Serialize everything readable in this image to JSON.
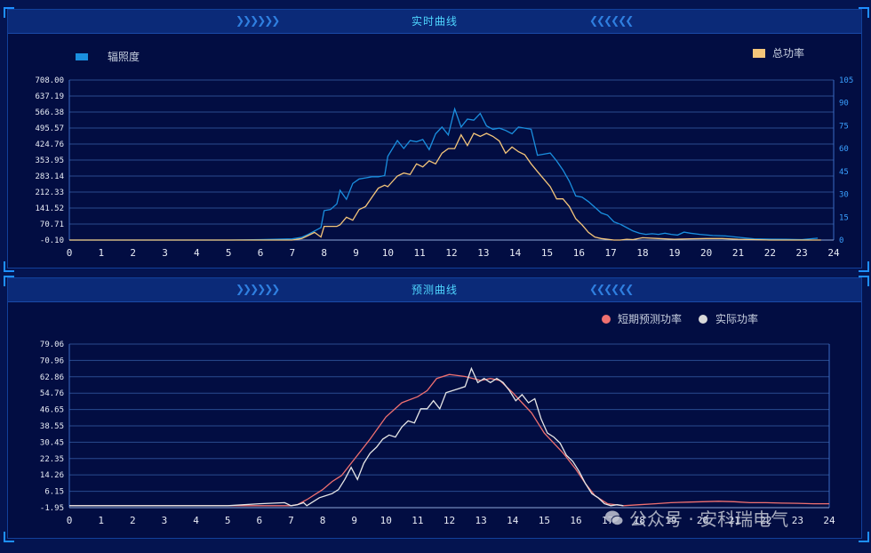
{
  "top_panel": {
    "title": "实时曲线"
  },
  "bottom_panel": {
    "title": "预测曲线"
  },
  "watermark": {
    "text": "公众号 · 安科瑞电气"
  },
  "colors": {
    "background": "#020d42",
    "title_bar": "#0b2a78",
    "title_text": "#4fd6ff",
    "irradiance": "#1a8fdf",
    "total_power": "#f5c67a",
    "forecast": "#f07070",
    "actual": "#e6e6e6"
  },
  "chart_data": [
    {
      "type": "line",
      "title": "实时曲线",
      "legend_position": "top",
      "x_ticks": [
        0,
        1,
        2,
        3,
        4,
        5,
        6,
        7,
        8,
        9,
        10,
        11,
        12,
        13,
        14,
        15,
        16,
        17,
        18,
        19,
        20,
        21,
        22,
        23,
        24
      ],
      "xlim": [
        0,
        24
      ],
      "y_left_ticks": [
        "-0.10",
        "70.71",
        "141.52",
        "212.33",
        "283.14",
        "353.95",
        "424.76",
        "495.57",
        "566.38",
        "637.19",
        "708.00"
      ],
      "y_left_lim": [
        -0.1,
        708.0
      ],
      "y_right_ticks": [
        "0",
        "15",
        "30",
        "45",
        "60",
        "75",
        "90",
        "105"
      ],
      "y_right_lim": [
        0,
        105
      ],
      "grid": true,
      "series": [
        {
          "name": "辐照度",
          "axis": "left",
          "x": [
            0,
            1,
            2,
            3,
            4,
            5,
            6,
            7,
            7.3,
            7.5,
            7.7,
            7.9,
            8.0,
            8.2,
            8.4,
            8.5,
            8.7,
            8.9,
            9.1,
            9.3,
            9.5,
            9.7,
            9.9,
            10.0,
            10.3,
            10.5,
            10.7,
            10.9,
            11.1,
            11.3,
            11.5,
            11.7,
            11.9,
            12.1,
            12.3,
            12.5,
            12.7,
            12.9,
            13.1,
            13.3,
            13.5,
            13.7,
            13.9,
            14.1,
            14.3,
            14.5,
            14.7,
            14.9,
            15.1,
            15.3,
            15.5,
            15.7,
            15.9,
            16.1,
            16.3,
            16.5,
            16.7,
            16.9,
            17.1,
            17.3,
            17.5,
            17.7,
            17.9,
            18.1,
            18.3,
            18.5,
            18.7,
            18.9,
            19.1,
            19.3,
            19.5,
            19.8,
            20.2,
            20.6,
            21.0,
            21.5,
            22.0,
            22.5,
            23.0,
            23.5
          ],
          "values": [
            0,
            0,
            0,
            0,
            0,
            0,
            2,
            5,
            12,
            25,
            40,
            55,
            130,
            135,
            160,
            220,
            180,
            250,
            270,
            275,
            280,
            280,
            285,
            370,
            440,
            405,
            440,
            435,
            445,
            400,
            470,
            500,
            465,
            580,
            500,
            535,
            530,
            560,
            505,
            490,
            495,
            485,
            470,
            500,
            495,
            490,
            375,
            380,
            385,
            350,
            310,
            260,
            195,
            190,
            170,
            145,
            120,
            110,
            80,
            70,
            55,
            40,
            30,
            25,
            28,
            25,
            30,
            25,
            22,
            35,
            30,
            25,
            20,
            18,
            12,
            5,
            4,
            3,
            2,
            8
          ]
        },
        {
          "name": "总功率",
          "axis": "right",
          "x": [
            0,
            1,
            2,
            3,
            4,
            5,
            6,
            7,
            7.3,
            7.5,
            7.7,
            7.9,
            8.0,
            8.2,
            8.4,
            8.5,
            8.7,
            8.9,
            9.1,
            9.3,
            9.5,
            9.7,
            9.9,
            10.0,
            10.3,
            10.5,
            10.7,
            10.9,
            11.1,
            11.3,
            11.5,
            11.7,
            11.9,
            12.1,
            12.3,
            12.5,
            12.7,
            12.9,
            13.1,
            13.3,
            13.5,
            13.7,
            13.9,
            14.1,
            14.3,
            14.5,
            14.7,
            14.9,
            15.1,
            15.3,
            15.5,
            15.7,
            15.9,
            16.1,
            16.3,
            16.5,
            16.7,
            16.9,
            17.1,
            17.3,
            17.5,
            17.7,
            18.0,
            18.5,
            19.0,
            19.5,
            20.0,
            20.5,
            21.0,
            21.5,
            22.0,
            23.0,
            23.6
          ],
          "values": [
            0,
            0,
            0,
            0,
            0,
            0,
            0,
            0,
            1,
            3,
            5,
            2,
            9,
            9,
            9,
            10,
            15,
            13,
            20,
            22,
            28,
            34,
            36,
            35,
            42,
            44,
            43,
            50,
            48,
            52,
            50,
            57,
            60,
            60,
            69,
            62,
            70,
            68,
            70,
            68,
            65,
            57,
            61,
            58,
            56,
            50,
            45,
            40,
            35,
            27,
            27,
            22,
            14,
            10,
            5,
            2,
            1,
            0.5,
            0,
            0,
            0.5,
            0.3,
            1.5,
            1,
            0.5,
            0.8,
            1,
            1,
            0.5,
            0.3,
            0,
            0,
            0
          ]
        }
      ]
    },
    {
      "type": "line",
      "title": "预测曲线",
      "legend_position": "top-right",
      "x_ticks": [
        0,
        1,
        2,
        3,
        4,
        5,
        6,
        7,
        8,
        9,
        10,
        11,
        12,
        13,
        14,
        15,
        16,
        17,
        18,
        19,
        20,
        21,
        22,
        23,
        24
      ],
      "xlim": [
        0,
        24
      ],
      "y_ticks": [
        "-1.95",
        "6.15",
        "14.26",
        "22.35",
        "30.45",
        "38.55",
        "46.65",
        "54.76",
        "62.86",
        "70.96",
        "79.06"
      ],
      "ylim": [
        -1.95,
        79.06
      ],
      "grid": true,
      "series": [
        {
          "name": "短期预测功率",
          "x": [
            0,
            1,
            2,
            3,
            4,
            5,
            6,
            7,
            7.2,
            7.5,
            8,
            8.3,
            8.6,
            9,
            9.5,
            10,
            10.5,
            11,
            11.3,
            11.6,
            12,
            12.5,
            13,
            13.3,
            13.6,
            14,
            14.3,
            14.6,
            15,
            15.3,
            15.6,
            16,
            16.3,
            16.6,
            17,
            17.5,
            18,
            18.5,
            19,
            19.5,
            20,
            20.5,
            21,
            21.5,
            22,
            22.5,
            23,
            23.5,
            24
          ],
          "values": [
            -1,
            -1,
            -1,
            -1,
            -1,
            -1,
            -1,
            -1,
            -0.5,
            2,
            7,
            11,
            14,
            22,
            32,
            43,
            50,
            53,
            56,
            62,
            64,
            63,
            61,
            62,
            61,
            55,
            50,
            45,
            35,
            30,
            25,
            17,
            10,
            4,
            0,
            -1,
            -0.5,
            0,
            0.5,
            0.8,
            1,
            1.2,
            1,
            0.5,
            0.5,
            0.3,
            0.2,
            0,
            0
          ]
        },
        {
          "name": "实际功率",
          "x": [
            0,
            1,
            2,
            3,
            4,
            5,
            6,
            6.8,
            7.0,
            7.2,
            7.4,
            7.5,
            7.7,
            7.9,
            8.1,
            8.3,
            8.5,
            8.7,
            8.9,
            9.1,
            9.3,
            9.5,
            9.7,
            9.9,
            10.1,
            10.3,
            10.5,
            10.7,
            10.9,
            11.1,
            11.3,
            11.5,
            11.7,
            11.9,
            12.1,
            12.3,
            12.5,
            12.7,
            12.9,
            13.1,
            13.3,
            13.5,
            13.7,
            13.9,
            14.1,
            14.3,
            14.5,
            14.7,
            14.9,
            15.1,
            15.3,
            15.5,
            15.7,
            15.9,
            16.1,
            16.3,
            16.5,
            16.7,
            16.9,
            17.1,
            17.3,
            17.5
          ],
          "values": [
            -1,
            -1,
            -1,
            -1,
            -1,
            -1,
            0,
            0.5,
            -1,
            -0.5,
            0.5,
            -1,
            1,
            3,
            4,
            5,
            7,
            12,
            18,
            12,
            20,
            25,
            28,
            32,
            34,
            33,
            38,
            41,
            40,
            47,
            47,
            51,
            47,
            55,
            56,
            57,
            58,
            67,
            60,
            62,
            60,
            62,
            60,
            56,
            51,
            54,
            50,
            52,
            42,
            35,
            33,
            30,
            24,
            21,
            16,
            10,
            5,
            3,
            0,
            -1,
            -0.5,
            -1
          ]
        }
      ]
    }
  ]
}
